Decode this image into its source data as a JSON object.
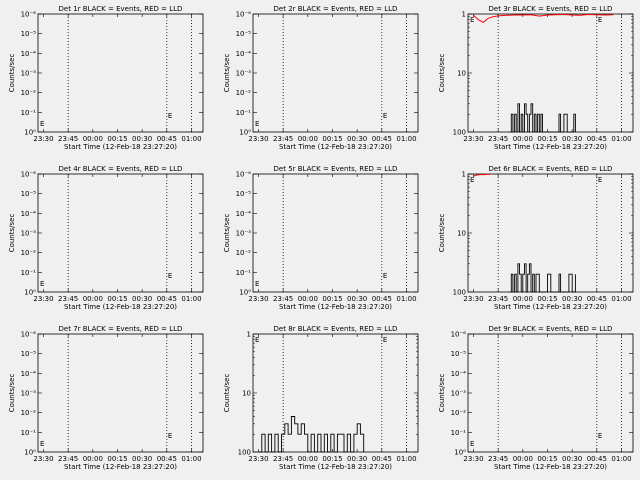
{
  "figure": {
    "background": "#f0f0f0",
    "event_color": "#000000",
    "lld_color": "#ff0000"
  },
  "chart_data": [
    {
      "type": "line",
      "title": "Det 1r BLACK = Events, RED = LLD",
      "xlabel": "Start Time (12-Feb-18 23:27:20)",
      "ylabel": "Counts/sec",
      "x_ticks": [
        "23:30",
        "23:45",
        "00:00",
        "00:15",
        "00:30",
        "00:45",
        "01:00"
      ],
      "y_scale": "log",
      "ylim": [
        1e-06,
        0.1
      ],
      "y_ticks": [
        "10⁰",
        "10⁻¹",
        "10⁻²",
        "10⁻³",
        "10⁻⁴",
        "10⁻⁵",
        "10⁻⁶"
      ],
      "lld_series": [],
      "event_series": [],
      "marker": "E"
    },
    {
      "type": "line",
      "title": "Det 2r BLACK = Events, RED = LLD",
      "xlabel": "Start Time (12-Feb-18 23:27:20)",
      "ylabel": "Counts/sec",
      "x_ticks": [
        "23:30",
        "23:45",
        "00:00",
        "00:15",
        "00:30",
        "00:45",
        "01:00"
      ],
      "y_scale": "log",
      "ylim": [
        1e-06,
        0.1
      ],
      "y_ticks": [
        "10⁰",
        "10⁻¹",
        "10⁻²",
        "10⁻³",
        "10⁻⁴",
        "10⁻⁵",
        "10⁻⁶"
      ],
      "lld_series": [],
      "event_series": [],
      "marker": "E"
    },
    {
      "type": "line",
      "title": "Det 3r BLACK = Events, RED = LLD",
      "xlabel": "Start Time (12-Feb-18 23:27:20)",
      "ylabel": "Counts/sec",
      "x_ticks": [
        "23:30",
        "23:45",
        "00:00",
        "00:15",
        "00:30",
        "00:45",
        "01:00"
      ],
      "y_scale": "log",
      "ylim": [
        1,
        100
      ],
      "y_ticks": [
        "100",
        "10",
        "1"
      ],
      "lld_series": [
        [
          0,
          95
        ],
        [
          3,
          80
        ],
        [
          6,
          72
        ],
        [
          9,
          85
        ],
        [
          12,
          90
        ],
        [
          15,
          93
        ],
        [
          20,
          95
        ],
        [
          25,
          96
        ],
        [
          30,
          96
        ],
        [
          35,
          97
        ],
        [
          40,
          92
        ],
        [
          45,
          96
        ],
        [
          50,
          97
        ],
        [
          55,
          98
        ],
        [
          60,
          96
        ],
        [
          65,
          95
        ],
        [
          70,
          98
        ],
        [
          75,
          97
        ],
        [
          80,
          96
        ],
        [
          85,
          97
        ]
      ],
      "event_series": [
        [
          22,
          1
        ],
        [
          23,
          2
        ],
        [
          24,
          1
        ],
        [
          25,
          2
        ],
        [
          26,
          1
        ],
        [
          27,
          3
        ],
        [
          28,
          1
        ],
        [
          29,
          2
        ],
        [
          30,
          1
        ],
        [
          31,
          3
        ],
        [
          32,
          2
        ],
        [
          33,
          1
        ],
        [
          34,
          2
        ],
        [
          35,
          3
        ],
        [
          36,
          1
        ],
        [
          37,
          2
        ],
        [
          38,
          1
        ],
        [
          39,
          2
        ],
        [
          40,
          1
        ],
        [
          41,
          2
        ],
        [
          42,
          1
        ],
        [
          50,
          1
        ],
        [
          52,
          2
        ],
        [
          53,
          1
        ],
        [
          55,
          2
        ],
        [
          57,
          1
        ],
        [
          60,
          1
        ],
        [
          61,
          2
        ],
        [
          62,
          1
        ]
      ],
      "marker": "E"
    },
    {
      "type": "line",
      "title": "Det 4r BLACK = Events, RED = LLD",
      "xlabel": "Start Time (12-Feb-18 23:27:20)",
      "ylabel": "Counts/sec",
      "x_ticks": [
        "23:30",
        "23:45",
        "00:00",
        "00:15",
        "00:30",
        "00:45",
        "01:00"
      ],
      "y_scale": "log",
      "ylim": [
        1e-06,
        0.1
      ],
      "y_ticks": [
        "10⁰",
        "10⁻¹",
        "10⁻²",
        "10⁻³",
        "10⁻⁴",
        "10⁻⁵",
        "10⁻⁶"
      ],
      "lld_series": [],
      "event_series": [],
      "marker": "E"
    },
    {
      "type": "line",
      "title": "Det 5r BLACK = Events, RED = LLD",
      "xlabel": "Start Time (12-Feb-18 23:27:20)",
      "ylabel": "Counts/sec",
      "x_ticks": [
        "23:30",
        "23:45",
        "00:00",
        "00:15",
        "00:30",
        "00:45",
        "01:00"
      ],
      "y_scale": "log",
      "ylim": [
        1e-06,
        0.1
      ],
      "y_ticks": [
        "10⁰",
        "10⁻¹",
        "10⁻²",
        "10⁻³",
        "10⁻⁴",
        "10⁻⁵",
        "10⁻⁶"
      ],
      "lld_series": [],
      "event_series": [],
      "marker": "E"
    },
    {
      "type": "line",
      "title": "Det 6r BLACK = Events, RED = LLD",
      "xlabel": "Start Time (12-Feb-18 23:27:20)",
      "ylabel": "Counts/sec",
      "x_ticks": [
        "23:30",
        "23:45",
        "00:00",
        "00:15",
        "00:30",
        "00:45",
        "01:00"
      ],
      "y_scale": "log",
      "ylim": [
        1,
        100
      ],
      "y_ticks": [
        "100",
        "10",
        "1"
      ],
      "lld_series": [
        [
          0,
          92
        ],
        [
          2,
          96
        ],
        [
          4,
          98
        ],
        [
          6,
          97
        ],
        [
          8,
          99
        ],
        [
          10,
          98
        ]
      ],
      "event_series": [
        [
          22,
          1
        ],
        [
          23,
          2
        ],
        [
          24,
          1
        ],
        [
          25,
          2
        ],
        [
          26,
          1
        ],
        [
          27,
          3
        ],
        [
          28,
          2
        ],
        [
          29,
          1
        ],
        [
          30,
          2
        ],
        [
          31,
          3
        ],
        [
          32,
          1
        ],
        [
          33,
          2
        ],
        [
          34,
          3
        ],
        [
          35,
          1
        ],
        [
          36,
          2
        ],
        [
          37,
          1
        ],
        [
          38,
          2
        ],
        [
          40,
          1
        ],
        [
          45,
          2
        ],
        [
          47,
          1
        ],
        [
          52,
          2
        ],
        [
          53,
          1
        ],
        [
          55,
          1
        ],
        [
          58,
          2
        ],
        [
          60,
          1
        ],
        [
          62,
          2
        ]
      ],
      "marker": "E"
    },
    {
      "type": "line",
      "title": "Det 7r BLACK = Events, RED = LLD",
      "xlabel": "Start Time (12-Feb-18 23:27:20)",
      "ylabel": "Counts/sec",
      "x_ticks": [
        "23:30",
        "23:45",
        "00:00",
        "00:15",
        "00:30",
        "00:45",
        "01:00"
      ],
      "y_scale": "log",
      "ylim": [
        1e-06,
        0.1
      ],
      "y_ticks": [
        "10⁰",
        "10⁻¹",
        "10⁻²",
        "10⁻³",
        "10⁻⁴",
        "10⁻⁵",
        "10⁻⁶"
      ],
      "lld_series": [],
      "event_series": [],
      "marker": "E"
    },
    {
      "type": "line",
      "title": "Det 8r BLACK = Events, RED = LLD",
      "xlabel": "Start Time (12-Feb-18 23:27:20)",
      "ylabel": "Counts/sec",
      "x_ticks": [
        "23:30",
        "23:45",
        "00:00",
        "00:15",
        "00:30",
        "00:45",
        "01:00"
      ],
      "y_scale": "log",
      "ylim": [
        1,
        100
      ],
      "y_ticks": [
        "100",
        "10",
        "1"
      ],
      "lld_series": [],
      "event_series": [
        [
          0,
          1
        ],
        [
          2,
          2
        ],
        [
          4,
          1
        ],
        [
          6,
          2
        ],
        [
          8,
          1
        ],
        [
          10,
          2
        ],
        [
          12,
          1
        ],
        [
          14,
          2
        ],
        [
          16,
          3
        ],
        [
          18,
          2
        ],
        [
          20,
          4
        ],
        [
          22,
          3
        ],
        [
          24,
          2
        ],
        [
          26,
          3
        ],
        [
          28,
          2
        ],
        [
          30,
          1
        ],
        [
          32,
          2
        ],
        [
          34,
          1
        ],
        [
          36,
          2
        ],
        [
          38,
          1
        ],
        [
          40,
          2
        ],
        [
          42,
          1
        ],
        [
          44,
          2
        ],
        [
          46,
          1
        ],
        [
          48,
          2
        ],
        [
          50,
          2
        ],
        [
          52,
          1
        ],
        [
          54,
          2
        ],
        [
          56,
          1
        ],
        [
          58,
          2
        ],
        [
          60,
          3
        ],
        [
          62,
          2
        ],
        [
          64,
          1
        ]
      ],
      "marker": "E"
    },
    {
      "type": "line",
      "title": "Det 9r BLACK = Events, RED = LLD",
      "xlabel": "Start Time (12-Feb-18 23:27:20)",
      "ylabel": "Counts/sec",
      "x_ticks": [
        "23:30",
        "23:45",
        "00:00",
        "00:15",
        "00:30",
        "00:45",
        "01:00"
      ],
      "y_scale": "log",
      "ylim": [
        1e-06,
        0.1
      ],
      "y_ticks": [
        "10⁰",
        "10⁻¹",
        "10⁻²",
        "10⁻³",
        "10⁻⁴",
        "10⁻⁵",
        "10⁻⁶"
      ],
      "lld_series": [],
      "event_series": [],
      "marker": "E"
    }
  ]
}
